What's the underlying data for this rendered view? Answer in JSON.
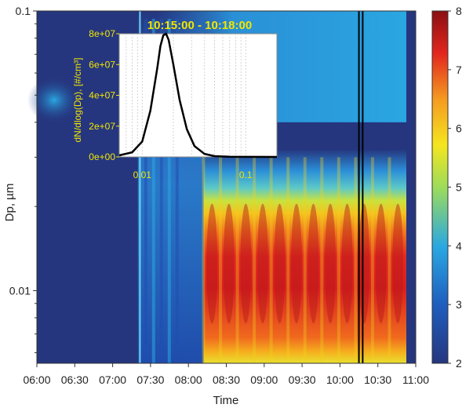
{
  "chart_data": {
    "type": "heatmap",
    "xlabel": "Time",
    "ylabel": "Dp, µm",
    "x_ticks": [
      "06:00",
      "06:30",
      "07:00",
      "07:30",
      "08:00",
      "08:30",
      "09:00",
      "09:30",
      "10:00",
      "10:30",
      "11:00"
    ],
    "x_range": [
      "06:00",
      "11:00"
    ],
    "y_scale": "log",
    "y_range": [
      0.0055,
      0.1
    ],
    "y_ticks": [
      0.01,
      0.1
    ],
    "y_tick_labels": [
      "0.01",
      "0.1"
    ],
    "colorbar": {
      "range": [
        2,
        8
      ],
      "ticks": [
        "2",
        "3",
        "4",
        "5",
        "6",
        "7",
        "8"
      ],
      "colormap": "jet"
    },
    "marked_times": [
      "10:15",
      "10:18"
    ],
    "colors": {
      "background": "#25367f",
      "marker_line": "#000000",
      "inset_text": "#f2e600"
    },
    "inset": {
      "type": "line",
      "title": "10:15:00 - 10:18:00",
      "ylabel": "dN/dlog(Dp), [#/cm³]",
      "x_scale": "log",
      "x_range": [
        0.006,
        0.2
      ],
      "x_tick_labels": [
        "0.01",
        "0.1"
      ],
      "y_range": [
        0,
        80000000
      ],
      "y_tick_labels": [
        "0e+00",
        "2e+07",
        "4e+07",
        "6e+07",
        "8e+07"
      ],
      "series": {
        "x": [
          0.006,
          0.008,
          0.01,
          0.012,
          0.014,
          0.015,
          0.016,
          0.017,
          0.018,
          0.02,
          0.023,
          0.027,
          0.032,
          0.04,
          0.05,
          0.07,
          0.1,
          0.2
        ],
        "y": [
          1000000,
          3000000,
          10000000,
          30000000,
          58000000,
          72000000,
          79000000,
          80000000,
          76000000,
          60000000,
          37000000,
          18000000,
          7000000,
          2000000,
          500000,
          100000,
          50000,
          0
        ]
      }
    }
  }
}
